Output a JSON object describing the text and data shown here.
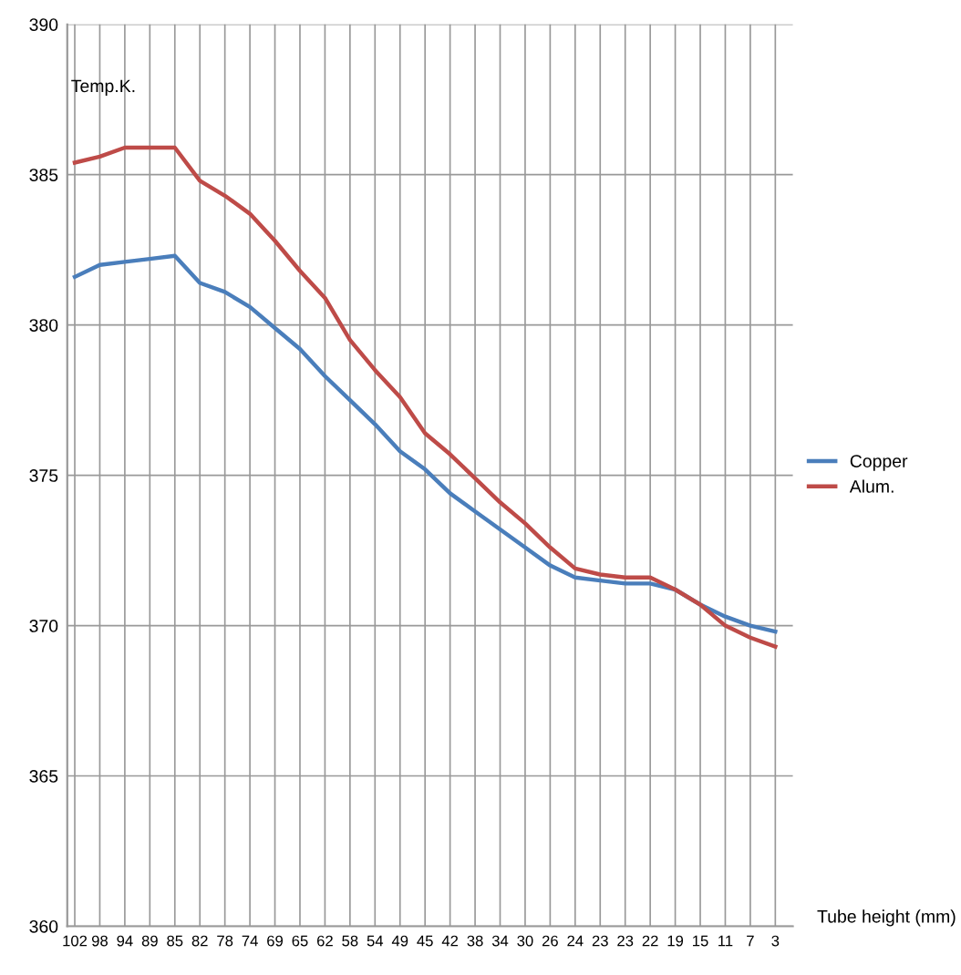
{
  "chart_data": {
    "type": "line",
    "ylabel": "Temp.K.",
    "xlabel": "Tube height (mm)",
    "categories": [
      "102",
      "98",
      "94",
      "89",
      "85",
      "82",
      "78",
      "74",
      "69",
      "65",
      "62",
      "58",
      "54",
      "49",
      "45",
      "42",
      "38",
      "34",
      "30",
      "26",
      "24",
      "23",
      "23",
      "22",
      "19",
      "15",
      "11",
      "7",
      "3"
    ],
    "series": [
      {
        "name": "Copper",
        "color": "#4a7ebb",
        "values": [
          381.6,
          382.0,
          382.1,
          382.2,
          382.3,
          381.4,
          381.1,
          380.6,
          379.9,
          379.2,
          378.3,
          377.5,
          376.7,
          375.8,
          375.2,
          374.4,
          373.8,
          373.2,
          372.6,
          372.0,
          371.6,
          371.5,
          371.4,
          371.4,
          371.2,
          370.7,
          370.3,
          370.0,
          369.8
        ]
      },
      {
        "name": "Alum.",
        "color": "#be4b48",
        "values": [
          385.4,
          385.6,
          385.9,
          385.9,
          385.9,
          384.8,
          384.3,
          383.7,
          382.8,
          381.8,
          380.9,
          379.5,
          378.5,
          377.6,
          376.4,
          375.7,
          374.9,
          374.1,
          373.4,
          372.6,
          371.9,
          371.7,
          371.6,
          371.6,
          371.2,
          370.7,
          370.0,
          369.6,
          369.3
        ]
      }
    ],
    "ylim": [
      360,
      390
    ],
    "yticks": [
      360,
      365,
      370,
      375,
      380,
      385,
      390
    ],
    "grid": true,
    "legend": "right",
    "marker": "none",
    "line_style": "solid"
  }
}
